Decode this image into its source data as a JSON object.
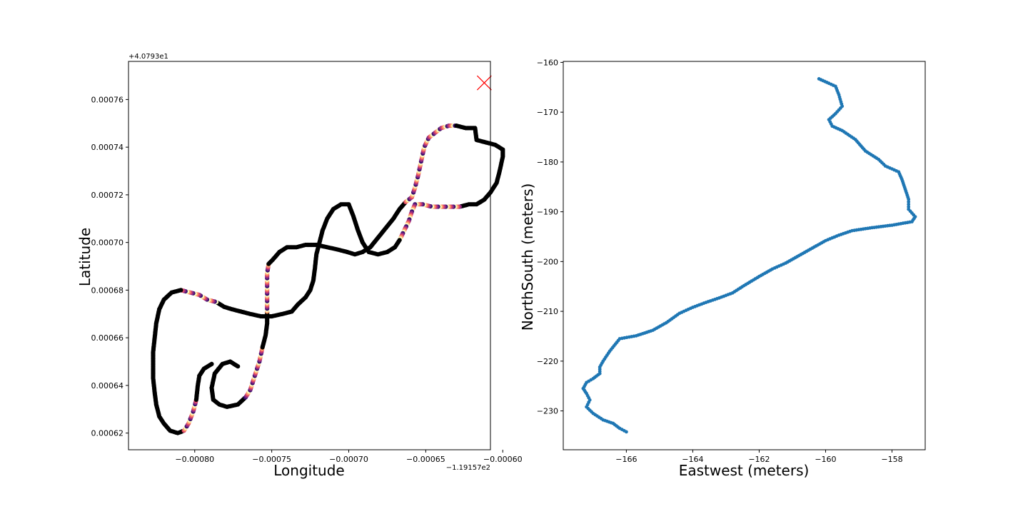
{
  "chart_data": [
    {
      "type": "scatter",
      "title": "",
      "xlabel": "Longitude",
      "ylabel": "Latitude",
      "x_offset_label": "−1.19157e2",
      "y_offset_label": "+4.0793e1",
      "xlim": [
        -0.000843,
        -0.000608
      ],
      "ylim": [
        0.000613,
        0.000776
      ],
      "xticks": [
        -0.0008,
        -0.00075,
        -0.0007,
        -0.00065,
        -0.0006
      ],
      "xtick_labels": [
        "−0.00080",
        "−0.00075",
        "−0.00070",
        "−0.00065",
        "−0.00060"
      ],
      "yticks": [
        0.00062,
        0.00064,
        0.00066,
        0.00068,
        0.0007,
        0.00072,
        0.00074,
        0.00076
      ],
      "ytick_labels": [
        "0.00062",
        "0.00064",
        "0.00066",
        "0.00068",
        "0.00070",
        "0.00072",
        "0.00074",
        "0.00076"
      ],
      "grid": false,
      "colormap": "magma",
      "track_color": "#000000",
      "marker": {
        "x": -0.000612,
        "y": 0.000767,
        "color": "#ff0000",
        "shape": "x"
      },
      "points": [
        [
          -0.000772,
          0.000648
        ],
        [
          -0.000777,
          0.00065
        ],
        [
          -0.000782,
          0.000649
        ],
        [
          -0.000787,
          0.000645
        ],
        [
          -0.000789,
          0.000639
        ],
        [
          -0.000788,
          0.000634
        ],
        [
          -0.000784,
          0.000632
        ],
        [
          -0.000779,
          0.000631
        ],
        [
          -0.000772,
          0.000632
        ],
        [
          -0.000767,
          0.000635
        ],
        [
          -0.000764,
          0.000638
        ],
        [
          -0.000761,
          0.000644
        ],
        [
          -0.000758,
          0.00065
        ],
        [
          -0.000756,
          0.000656
        ],
        [
          -0.000754,
          0.000661
        ],
        [
          -0.000753,
          0.000666
        ],
        [
          -0.000753,
          0.000671
        ],
        [
          -0.000753,
          0.000676
        ],
        [
          -0.000753,
          0.000681
        ],
        [
          -0.000753,
          0.000687
        ],
        [
          -0.000752,
          0.000691
        ],
        [
          -0.000749,
          0.000693
        ],
        [
          -0.000745,
          0.000696
        ],
        [
          -0.00074,
          0.000698
        ],
        [
          -0.000734,
          0.000698
        ],
        [
          -0.000728,
          0.000699
        ],
        [
          -0.000721,
          0.000699
        ],
        [
          -0.000714,
          0.000698
        ],
        [
          -0.000707,
          0.000697
        ],
        [
          -0.000701,
          0.000696
        ],
        [
          -0.000696,
          0.000695
        ],
        [
          -0.000691,
          0.000696
        ],
        [
          -0.000686,
          0.000698
        ],
        [
          -0.000681,
          0.000702
        ],
        [
          -0.000676,
          0.000706
        ],
        [
          -0.000671,
          0.00071
        ],
        [
          -0.000667,
          0.000714
        ],
        [
          -0.000663,
          0.000717
        ],
        [
          -0.000659,
          0.000719
        ],
        [
          -0.000657,
          0.000723
        ],
        [
          -0.000655,
          0.000728
        ],
        [
          -0.000653,
          0.000734
        ],
        [
          -0.000651,
          0.00074
        ],
        [
          -0.000648,
          0.000744
        ],
        [
          -0.000644,
          0.000746
        ],
        [
          -0.00064,
          0.000748
        ],
        [
          -0.000635,
          0.000749
        ],
        [
          -0.00063,
          0.000749
        ],
        [
          -0.000624,
          0.000748
        ],
        [
          -0.000618,
          0.000748
        ],
        [
          -0.000617,
          0.000743
        ],
        [
          -0.000611,
          0.000742
        ],
        [
          -0.000605,
          0.000741
        ],
        [
          -0.0006,
          0.000739
        ],
        [
          -0.0006,
          0.000736
        ],
        [
          -0.000602,
          0.00073
        ],
        [
          -0.000604,
          0.000725
        ],
        [
          -0.000608,
          0.000721
        ],
        [
          -0.000612,
          0.000718
        ],
        [
          -0.000617,
          0.000716
        ],
        [
          -0.000622,
          0.000716
        ],
        [
          -0.000628,
          0.000715
        ],
        [
          -0.000634,
          0.000715
        ],
        [
          -0.00064,
          0.000715
        ],
        [
          -0.000646,
          0.000715
        ],
        [
          -0.000652,
          0.000716
        ],
        [
          -0.000657,
          0.000716
        ],
        [
          -0.000659,
          0.000713
        ],
        [
          -0.000661,
          0.000709
        ],
        [
          -0.000664,
          0.000705
        ],
        [
          -0.000667,
          0.000701
        ],
        [
          -0.00067,
          0.000698
        ],
        [
          -0.000675,
          0.000696
        ],
        [
          -0.000681,
          0.000695
        ],
        [
          -0.000687,
          0.000696
        ],
        [
          -0.000691,
          0.0007
        ],
        [
          -0.000694,
          0.000705
        ],
        [
          -0.000697,
          0.000711
        ],
        [
          -0.0007,
          0.000716
        ],
        [
          -0.000705,
          0.000716
        ],
        [
          -0.00071,
          0.000714
        ],
        [
          -0.000714,
          0.00071
        ],
        [
          -0.000717,
          0.000705
        ],
        [
          -0.000719,
          0.0007
        ],
        [
          -0.000721,
          0.000695
        ],
        [
          -0.000722,
          0.000689
        ],
        [
          -0.000723,
          0.000684
        ],
        [
          -0.000725,
          0.00068
        ],
        [
          -0.000728,
          0.000677
        ],
        [
          -0.000733,
          0.000674
        ],
        [
          -0.000737,
          0.000671
        ],
        [
          -0.000743,
          0.00067
        ],
        [
          -0.00075,
          0.000669
        ],
        [
          -0.000757,
          0.000669
        ],
        [
          -0.000764,
          0.00067
        ],
        [
          -0.00077,
          0.000671
        ],
        [
          -0.000776,
          0.000672
        ],
        [
          -0.000781,
          0.000673
        ],
        [
          -0.000786,
          0.000675
        ],
        [
          -0.000792,
          0.000676
        ],
        [
          -0.000797,
          0.000678
        ],
        [
          -0.000803,
          0.000679
        ],
        [
          -0.000809,
          0.00068
        ],
        [
          -0.000815,
          0.000679
        ],
        [
          -0.00082,
          0.000676
        ],
        [
          -0.000823,
          0.000672
        ],
        [
          -0.000825,
          0.000666
        ],
        [
          -0.000826,
          0.00066
        ],
        [
          -0.000827,
          0.000654
        ],
        [
          -0.000827,
          0.000648
        ],
        [
          -0.000827,
          0.000643
        ],
        [
          -0.000826,
          0.000637
        ],
        [
          -0.000825,
          0.000632
        ],
        [
          -0.000823,
          0.000627
        ],
        [
          -0.00082,
          0.000624
        ],
        [
          -0.000816,
          0.000621
        ],
        [
          -0.000811,
          0.00062
        ],
        [
          -0.000807,
          0.000621
        ],
        [
          -0.000804,
          0.000624
        ],
        [
          -0.000801,
          0.000629
        ],
        [
          -0.000799,
          0.000634
        ],
        [
          -0.000798,
          0.00064
        ],
        [
          -0.000797,
          0.000644
        ],
        [
          -0.000794,
          0.000647
        ],
        [
          -0.000789,
          0.000649
        ]
      ]
    },
    {
      "type": "scatter",
      "title": "",
      "xlabel": "Eastwest (meters)",
      "ylabel": "NorthSouth (meters)",
      "xlim": [
        -167.9,
        -157.0
      ],
      "ylim": [
        -237.8,
        -159.8
      ],
      "xticks": [
        -166,
        -164,
        -162,
        -160,
        -158
      ],
      "xtick_labels": [
        "−166",
        "−164",
        "−162",
        "−160",
        "−158"
      ],
      "yticks": [
        -160,
        -170,
        -180,
        -190,
        -200,
        -210,
        -220,
        -230
      ],
      "ytick_labels": [
        "−160",
        "−170",
        "−180",
        "−190",
        "−200",
        "−210",
        "−220",
        "−230"
      ],
      "grid": false,
      "color": "#1f77b4",
      "points": [
        [
          -160.2,
          -163.3
        ],
        [
          -159.9,
          -164.2
        ],
        [
          -159.7,
          -164.8
        ],
        [
          -159.6,
          -166.5
        ],
        [
          -159.5,
          -168.8
        ],
        [
          -159.7,
          -170.3
        ],
        [
          -159.9,
          -171.5
        ],
        [
          -159.8,
          -172.8
        ],
        [
          -159.5,
          -173.7
        ],
        [
          -159.1,
          -175.5
        ],
        [
          -158.8,
          -177.8
        ],
        [
          -158.4,
          -179.5
        ],
        [
          -158.2,
          -180.8
        ],
        [
          -157.8,
          -182.0
        ],
        [
          -157.7,
          -183.5
        ],
        [
          -157.6,
          -185.5
        ],
        [
          -157.5,
          -187.5
        ],
        [
          -157.5,
          -189.5
        ],
        [
          -157.3,
          -191.0
        ],
        [
          -157.4,
          -192.0
        ],
        [
          -158.0,
          -192.7
        ],
        [
          -158.6,
          -193.2
        ],
        [
          -159.2,
          -193.8
        ],
        [
          -159.6,
          -194.7
        ],
        [
          -160.0,
          -195.8
        ],
        [
          -160.4,
          -197.3
        ],
        [
          -160.8,
          -198.8
        ],
        [
          -161.2,
          -200.3
        ],
        [
          -161.6,
          -201.5
        ],
        [
          -162.0,
          -203.0
        ],
        [
          -162.4,
          -204.6
        ],
        [
          -162.8,
          -206.3
        ],
        [
          -163.2,
          -207.3
        ],
        [
          -163.6,
          -208.2
        ],
        [
          -164.0,
          -209.2
        ],
        [
          -164.4,
          -210.4
        ],
        [
          -164.8,
          -212.3
        ],
        [
          -165.2,
          -213.8
        ],
        [
          -165.7,
          -214.9
        ],
        [
          -166.2,
          -215.5
        ],
        [
          -166.5,
          -218.0
        ],
        [
          -166.7,
          -220.0
        ],
        [
          -166.8,
          -221.2
        ],
        [
          -166.8,
          -222.5
        ],
        [
          -167.0,
          -223.5
        ],
        [
          -167.2,
          -224.3
        ],
        [
          -167.3,
          -225.5
        ],
        [
          -167.2,
          -226.5
        ],
        [
          -167.1,
          -227.8
        ],
        [
          -167.2,
          -229.2
        ],
        [
          -167.0,
          -230.5
        ],
        [
          -166.7,
          -231.8
        ],
        [
          -166.4,
          -232.5
        ],
        [
          -166.2,
          -233.5
        ],
        [
          -166.0,
          -234.2
        ]
      ]
    }
  ]
}
